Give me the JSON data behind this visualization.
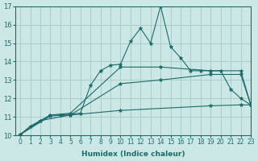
{
  "xlabel": "Humidex (Indice chaleur)",
  "ylabel": "",
  "xlim": [
    -0.5,
    23
  ],
  "ylim": [
    10,
    17
  ],
  "yticks": [
    10,
    11,
    12,
    13,
    14,
    15,
    16,
    17
  ],
  "xticks": [
    0,
    1,
    2,
    3,
    4,
    5,
    6,
    7,
    8,
    9,
    10,
    11,
    12,
    13,
    14,
    15,
    16,
    17,
    18,
    19,
    20,
    21,
    22,
    23
  ],
  "bg_color": "#cce8e6",
  "grid_color": "#aaccca",
  "line_color": "#1a6b6b",
  "lines": [
    {
      "x": [
        0,
        1,
        2,
        3,
        4,
        5,
        6,
        7,
        8,
        9,
        10,
        11,
        12,
        13,
        14,
        15,
        16,
        17,
        18,
        19,
        20,
        21,
        22,
        23
      ],
      "y": [
        10.05,
        10.5,
        10.8,
        11.1,
        11.1,
        11.15,
        11.2,
        12.7,
        13.5,
        13.8,
        13.85,
        15.1,
        15.8,
        15.0,
        17.0,
        14.8,
        14.2,
        13.5,
        13.5,
        13.5,
        13.5,
        12.5,
        12.0,
        11.65
      ]
    },
    {
      "x": [
        0,
        3,
        5,
        10,
        14,
        19,
        22,
        23
      ],
      "y": [
        10.05,
        11.1,
        11.2,
        13.7,
        13.7,
        13.5,
        13.5,
        11.65
      ]
    },
    {
      "x": [
        0,
        3,
        5,
        10,
        14,
        19,
        22,
        23
      ],
      "y": [
        10.05,
        11.05,
        11.1,
        12.8,
        13.0,
        13.3,
        13.3,
        11.65
      ]
    },
    {
      "x": [
        0,
        2,
        5,
        10,
        19,
        22,
        23
      ],
      "y": [
        10.05,
        10.8,
        11.1,
        11.35,
        11.6,
        11.65,
        11.65
      ]
    }
  ]
}
